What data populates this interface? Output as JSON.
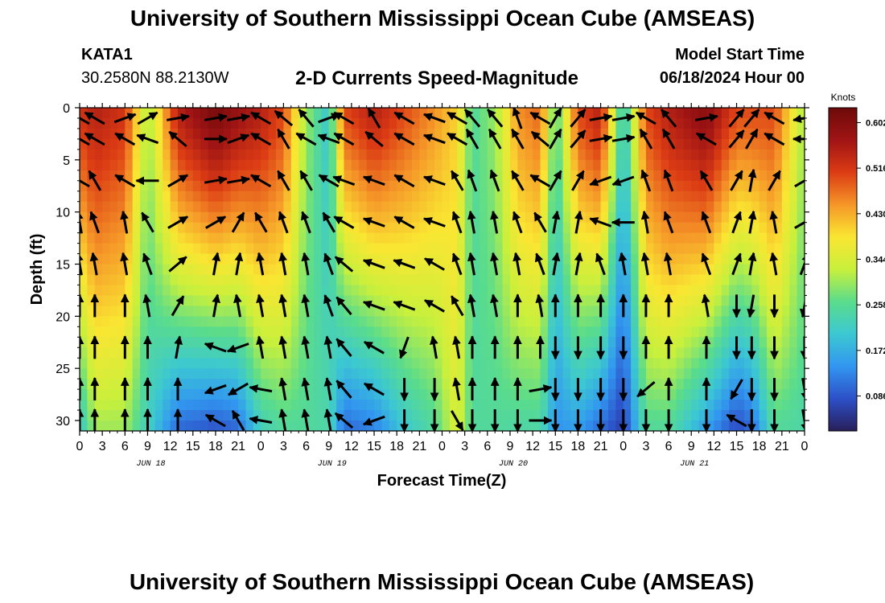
{
  "header": {
    "title": "University of Southern Mississippi Ocean Cube (AMSEAS)",
    "station": "KATA1",
    "coordinates": "30.2580N  88.2130W",
    "subtitle": "2-D Currents Speed-Magnitude",
    "model_start_label": "Model Start Time",
    "model_start_value": "06/18/2024 Hour 00"
  },
  "footer": {
    "title": "University of Southern Mississippi Ocean Cube (AMSEAS)"
  },
  "chart_data": {
    "type": "heatmap",
    "title": "2-D Currents Speed-Magnitude",
    "xlabel": "Forecast Time(Z)",
    "ylabel": "Depth (ft)",
    "x_tick_labels": [
      "0",
      "3",
      "6",
      "9",
      "12",
      "15",
      "18",
      "21",
      "0",
      "3",
      "6",
      "9",
      "12",
      "15",
      "18",
      "21",
      "0",
      "3",
      "6",
      "9",
      "12",
      "15",
      "18",
      "21",
      "0",
      "3",
      "6",
      "9",
      "12",
      "15",
      "18",
      "21",
      "0"
    ],
    "day_labels": [
      {
        "label": "JUN 18",
        "hour": 9
      },
      {
        "label": "JUN 19",
        "hour": 33
      },
      {
        "label": "JUN 20",
        "hour": 57
      },
      {
        "label": "JUN 21",
        "hour": 81
      }
    ],
    "x_range_hours": [
      0,
      96
    ],
    "y_ticks": [
      0,
      5,
      10,
      15,
      20,
      25,
      30
    ],
    "y_range_ft": [
      0,
      31
    ],
    "colorbar": {
      "label": "Knots",
      "ticks": [
        "0.086",
        "0.172",
        "0.258",
        "0.344",
        "0.430",
        "0.516",
        "0.602"
      ],
      "range": [
        0.02,
        0.63
      ],
      "colors": [
        "#281e5a",
        "#2d50c8",
        "#3296f0",
        "#3cc8d2",
        "#5adc8c",
        "#c8f03c",
        "#fae632",
        "#f59628",
        "#dc3c14",
        "#a01414",
        "#6e0a0a"
      ]
    },
    "speed_profile_columns": [
      {
        "hour": 0,
        "surface": 0.52,
        "bottom": 0.2
      },
      {
        "hour": 2,
        "surface": 0.55,
        "bottom": 0.3
      },
      {
        "hour": 6,
        "surface": 0.52,
        "bottom": 0.3
      },
      {
        "hour": 9,
        "surface": 0.3,
        "bottom": 0.22
      },
      {
        "hour": 13,
        "surface": 0.55,
        "bottom": 0.1
      },
      {
        "hour": 18,
        "surface": 0.62,
        "bottom": 0.08
      },
      {
        "hour": 21,
        "surface": 0.58,
        "bottom": 0.1
      },
      {
        "hour": 24,
        "surface": 0.55,
        "bottom": 0.22
      },
      {
        "hour": 27,
        "surface": 0.5,
        "bottom": 0.25
      },
      {
        "hour": 30,
        "surface": 0.3,
        "bottom": 0.25
      },
      {
        "hour": 33,
        "surface": 0.2,
        "bottom": 0.24
      },
      {
        "hour": 35,
        "surface": 0.5,
        "bottom": 0.1
      },
      {
        "hour": 39,
        "surface": 0.55,
        "bottom": 0.12
      },
      {
        "hour": 43,
        "surface": 0.5,
        "bottom": 0.2
      },
      {
        "hour": 47,
        "surface": 0.45,
        "bottom": 0.25
      },
      {
        "hour": 50,
        "surface": 0.4,
        "bottom": 0.35
      },
      {
        "hour": 52,
        "surface": 0.25,
        "bottom": 0.25
      },
      {
        "hour": 55,
        "surface": 0.3,
        "bottom": 0.25
      },
      {
        "hour": 58,
        "surface": 0.45,
        "bottom": 0.24
      },
      {
        "hour": 61,
        "surface": 0.48,
        "bottom": 0.24
      },
      {
        "hour": 63,
        "surface": 0.25,
        "bottom": 0.14
      },
      {
        "hour": 66,
        "surface": 0.5,
        "bottom": 0.15
      },
      {
        "hour": 69,
        "surface": 0.55,
        "bottom": 0.1
      },
      {
        "hour": 72,
        "surface": 0.2,
        "bottom": 0.06
      },
      {
        "hour": 75,
        "surface": 0.5,
        "bottom": 0.25
      },
      {
        "hour": 78,
        "surface": 0.55,
        "bottom": 0.25
      },
      {
        "hour": 83,
        "surface": 0.6,
        "bottom": 0.15
      },
      {
        "hour": 87,
        "surface": 0.5,
        "bottom": 0.07
      },
      {
        "hour": 89,
        "surface": 0.5,
        "bottom": 0.1
      },
      {
        "hour": 92,
        "surface": 0.5,
        "bottom": 0.25
      },
      {
        "hour": 96,
        "surface": 0.3,
        "bottom": 0.24
      }
    ],
    "vector_hours": [
      0,
      2,
      6,
      9,
      13,
      18,
      21,
      24,
      27,
      30,
      33,
      35,
      39,
      43,
      47,
      50,
      52,
      55,
      58,
      61,
      63,
      66,
      69,
      72,
      75,
      78,
      83,
      87,
      89,
      92,
      96
    ],
    "vector_depths_ft": [
      1,
      3,
      7,
      11,
      15,
      19,
      23,
      27,
      30
    ],
    "vector_directions_deg": [
      [
        300,
        300,
        70,
        60,
        80,
        80,
        80,
        300,
        310,
        320,
        70,
        300,
        330,
        300,
        290,
        300,
        320,
        320,
        340,
        300,
        30,
        40,
        80,
        80,
        300,
        320,
        80,
        40,
        40,
        300,
        260
      ],
      [
        300,
        300,
        300,
        290,
        310,
        90,
        70,
        300,
        330,
        300,
        290,
        300,
        310,
        300,
        290,
        300,
        330,
        330,
        330,
        310,
        30,
        40,
        80,
        80,
        330,
        330,
        300,
        40,
        30,
        300,
        270
      ],
      [
        300,
        330,
        300,
        270,
        60,
        80,
        80,
        300,
        330,
        330,
        300,
        290,
        290,
        300,
        290,
        330,
        340,
        340,
        330,
        300,
        30,
        30,
        250,
        250,
        340,
        340,
        330,
        30,
        10,
        30,
        60
      ],
      [
        350,
        340,
        350,
        330,
        60,
        60,
        30,
        330,
        340,
        340,
        330,
        300,
        290,
        300,
        290,
        340,
        350,
        350,
        340,
        330,
        10,
        10,
        290,
        270,
        350,
        340,
        340,
        20,
        10,
        350,
        60
      ],
      [
        350,
        350,
        350,
        340,
        50,
        10,
        10,
        350,
        350,
        350,
        340,
        310,
        290,
        290,
        300,
        340,
        350,
        350,
        350,
        340,
        10,
        10,
        340,
        350,
        350,
        350,
        340,
        20,
        10,
        350,
        20
      ],
      [
        0,
        360,
        0,
        350,
        30,
        10,
        350,
        350,
        350,
        350,
        340,
        320,
        290,
        290,
        300,
        330,
        350,
        350,
        360,
        350,
        0,
        0,
        360,
        0,
        360,
        360,
        350,
        180,
        190,
        180,
        190
      ],
      [
        0,
        0,
        0,
        0,
        10,
        290,
        250,
        350,
        350,
        350,
        350,
        320,
        300,
        200,
        350,
        350,
        360,
        360,
        360,
        360,
        180,
        180,
        180,
        180,
        360,
        360,
        360,
        180,
        180,
        180,
        180
      ],
      [
        0,
        0,
        0,
        0,
        0,
        250,
        240,
        280,
        350,
        350,
        350,
        320,
        300,
        180,
        180,
        350,
        360,
        360,
        360,
        80,
        180,
        180,
        180,
        180,
        230,
        0,
        0,
        210,
        180,
        180,
        170
      ],
      [
        0,
        0,
        0,
        0,
        0,
        300,
        330,
        280,
        350,
        350,
        350,
        310,
        250,
        180,
        180,
        150,
        180,
        180,
        180,
        90,
        180,
        180,
        180,
        180,
        180,
        180,
        180,
        300,
        180,
        180,
        170
      ]
    ]
  }
}
